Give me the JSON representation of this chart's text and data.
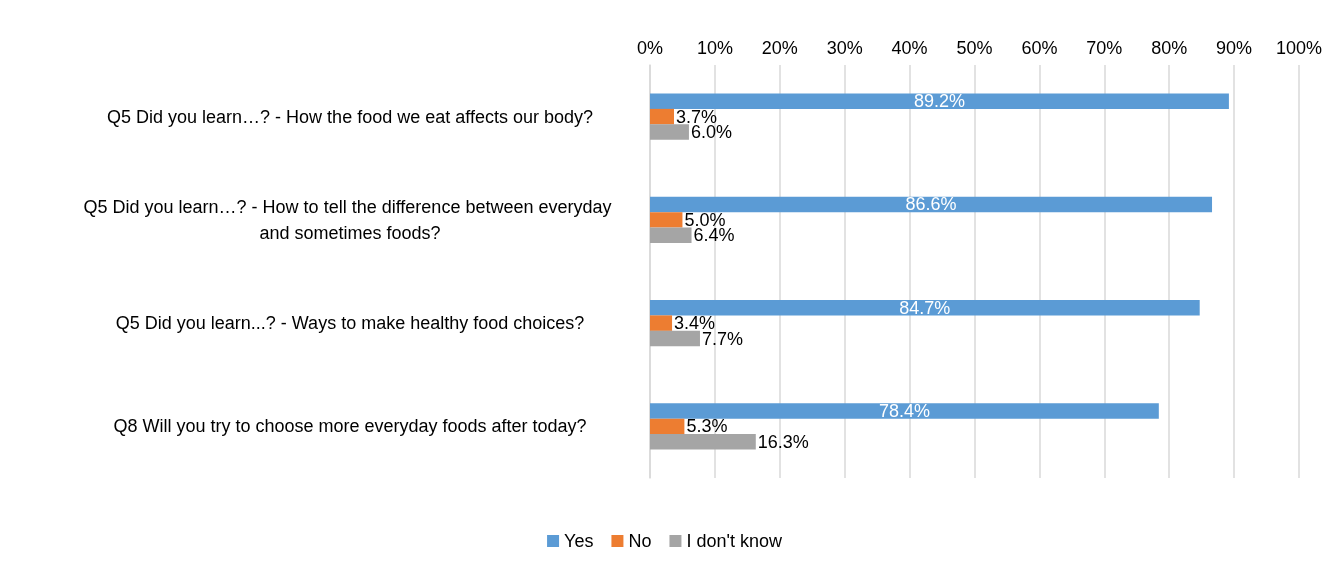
{
  "chart_data": {
    "type": "bar",
    "orientation": "horizontal",
    "categories": [
      "Q5 Did you learn…? - How the food we eat affects our body?",
      "Q5 Did you learn…? - How to tell the difference between everyday and sometimes foods?",
      "Q5 Did you learn...? - Ways to make healthy food choices?",
      "Q8 Will you try to choose more everyday foods after today?"
    ],
    "series": [
      {
        "name": "Yes",
        "color": "#5b9bd5",
        "values": [
          89.2,
          86.6,
          84.7,
          78.4
        ],
        "value_labels": [
          "89.2%",
          "86.6%",
          "84.7%",
          "78.4%"
        ]
      },
      {
        "name": "No",
        "color": "#ed7d31",
        "values": [
          3.7,
          5.0,
          3.4,
          5.3
        ],
        "value_labels": [
          "3.7%",
          "5.0%",
          "3.4%",
          "5.3%"
        ]
      },
      {
        "name": "I don't know",
        "color": "#a5a5a5",
        "values": [
          6.0,
          6.4,
          7.7,
          16.3
        ],
        "value_labels": [
          "6.0%",
          "6.4%",
          "7.7%",
          "16.3%"
        ]
      }
    ],
    "xlim": [
      0,
      100
    ],
    "xticks": [
      {
        "value": 0,
        "label": "0%"
      },
      {
        "value": 10,
        "label": "10%"
      },
      {
        "value": 20,
        "label": "20%"
      },
      {
        "value": 30,
        "label": "30%"
      },
      {
        "value": 40,
        "label": "40%"
      },
      {
        "value": 50,
        "label": "50%"
      },
      {
        "value": 60,
        "label": "60%"
      },
      {
        "value": 70,
        "label": "70%"
      },
      {
        "value": 80,
        "label": "80%"
      },
      {
        "value": 90,
        "label": "90%"
      },
      {
        "value": 100,
        "label": "100%"
      }
    ],
    "grid": "x",
    "legend": "bottom"
  }
}
